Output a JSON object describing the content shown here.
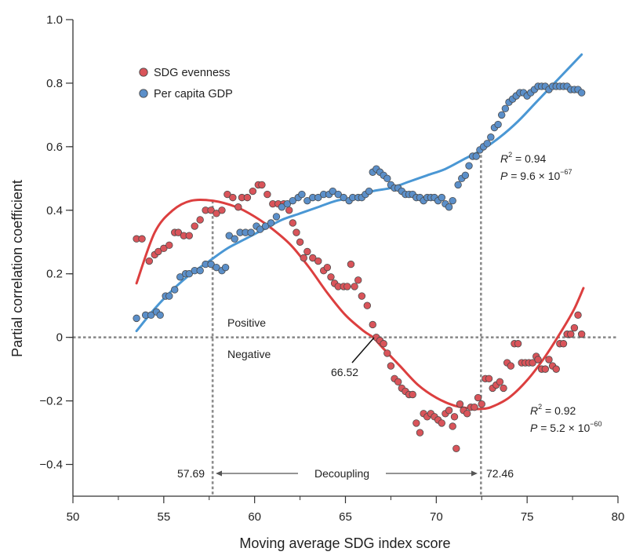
{
  "chart_data": {
    "type": "scatter",
    "xlabel": "Moving average SDG index score",
    "ylabel": "Partial correlation coefficient",
    "xlim": [
      50,
      80
    ],
    "ylim": [
      -0.5,
      1.0
    ],
    "xticks": [
      50,
      55,
      60,
      65,
      70,
      75,
      80
    ],
    "xtick_labels": [
      "50",
      "55",
      "60",
      "65",
      "70",
      "75",
      "80"
    ],
    "yticks": [
      -0.4,
      -0.2,
      0,
      0.2,
      0.4,
      0.6,
      0.8,
      1.0
    ],
    "ytick_labels": [
      "−0.4",
      "−0.2",
      "0",
      "0.2",
      "0.4",
      "0.6",
      "0.8",
      "1.0"
    ],
    "legend": {
      "position": "top-left",
      "entries": [
        "SDG evenness",
        "Per capita GDP"
      ]
    },
    "colors": {
      "evenness_point": "#d9545a",
      "evenness_line": "#dc3f3f",
      "gdp_point": "#5b8fc9",
      "gdp_line": "#4a97d4",
      "reference_line": "#8c8c8c",
      "marker_edge": "#4a4a4a"
    },
    "series": [
      {
        "name": "SDG evenness",
        "points": [
          [
            53.5,
            0.31
          ],
          [
            53.8,
            0.31
          ],
          [
            54.2,
            0.24
          ],
          [
            54.5,
            0.26
          ],
          [
            54.7,
            0.27
          ],
          [
            55.0,
            0.28
          ],
          [
            55.3,
            0.29
          ],
          [
            55.6,
            0.33
          ],
          [
            55.8,
            0.33
          ],
          [
            56.1,
            0.32
          ],
          [
            56.4,
            0.32
          ],
          [
            56.7,
            0.35
          ],
          [
            57.0,
            0.37
          ],
          [
            57.3,
            0.4
          ],
          [
            57.6,
            0.4
          ],
          [
            57.9,
            0.39
          ],
          [
            58.2,
            0.4
          ],
          [
            58.5,
            0.45
          ],
          [
            58.8,
            0.44
          ],
          [
            59.1,
            0.41
          ],
          [
            59.3,
            0.44
          ],
          [
            59.6,
            0.44
          ],
          [
            59.9,
            0.46
          ],
          [
            60.2,
            0.48
          ],
          [
            60.4,
            0.48
          ],
          [
            60.7,
            0.45
          ],
          [
            61.0,
            0.42
          ],
          [
            61.3,
            0.42
          ],
          [
            61.6,
            0.42
          ],
          [
            61.9,
            0.4
          ],
          [
            62.1,
            0.36
          ],
          [
            62.3,
            0.33
          ],
          [
            62.5,
            0.3
          ],
          [
            62.7,
            0.25
          ],
          [
            62.9,
            0.27
          ],
          [
            63.2,
            0.25
          ],
          [
            63.5,
            0.24
          ],
          [
            63.8,
            0.21
          ],
          [
            64.0,
            0.22
          ],
          [
            64.2,
            0.19
          ],
          [
            64.4,
            0.17
          ],
          [
            64.6,
            0.16
          ],
          [
            64.9,
            0.16
          ],
          [
            65.1,
            0.16
          ],
          [
            65.3,
            0.23
          ],
          [
            65.5,
            0.16
          ],
          [
            65.7,
            0.18
          ],
          [
            65.9,
            0.13
          ],
          [
            66.2,
            0.1
          ],
          [
            66.5,
            0.04
          ],
          [
            66.7,
            0.0
          ],
          [
            66.9,
            -0.01
          ],
          [
            67.1,
            -0.02
          ],
          [
            67.3,
            -0.05
          ],
          [
            67.5,
            -0.09
          ],
          [
            67.7,
            -0.13
          ],
          [
            67.9,
            -0.14
          ],
          [
            68.1,
            -0.16
          ],
          [
            68.3,
            -0.17
          ],
          [
            68.5,
            -0.18
          ],
          [
            68.7,
            -0.18
          ],
          [
            68.9,
            -0.27
          ],
          [
            69.1,
            -0.3
          ],
          [
            69.3,
            -0.24
          ],
          [
            69.5,
            -0.25
          ],
          [
            69.7,
            -0.24
          ],
          [
            69.9,
            -0.25
          ],
          [
            70.1,
            -0.26
          ],
          [
            70.3,
            -0.27
          ],
          [
            70.5,
            -0.24
          ],
          [
            70.7,
            -0.23
          ],
          [
            70.9,
            -0.28
          ],
          [
            71.0,
            -0.25
          ],
          [
            71.1,
            -0.35
          ],
          [
            71.3,
            -0.21
          ],
          [
            71.5,
            -0.23
          ],
          [
            71.7,
            -0.24
          ],
          [
            71.9,
            -0.22
          ],
          [
            72.1,
            -0.22
          ],
          [
            72.3,
            -0.19
          ],
          [
            72.5,
            -0.21
          ],
          [
            72.7,
            -0.13
          ],
          [
            72.9,
            -0.13
          ],
          [
            73.1,
            -0.16
          ],
          [
            73.3,
            -0.15
          ],
          [
            73.5,
            -0.14
          ],
          [
            73.7,
            -0.16
          ],
          [
            73.9,
            -0.08
          ],
          [
            74.1,
            -0.09
          ],
          [
            74.3,
            -0.02
          ],
          [
            74.5,
            -0.02
          ],
          [
            74.7,
            -0.08
          ],
          [
            74.9,
            -0.08
          ],
          [
            75.1,
            -0.08
          ],
          [
            75.3,
            -0.08
          ],
          [
            75.5,
            -0.06
          ],
          [
            75.6,
            -0.07
          ],
          [
            75.8,
            -0.1
          ],
          [
            76.0,
            -0.1
          ],
          [
            76.2,
            -0.07
          ],
          [
            76.4,
            -0.09
          ],
          [
            76.6,
            -0.1
          ],
          [
            76.8,
            -0.02
          ],
          [
            77.0,
            -0.02
          ],
          [
            77.2,
            0.01
          ],
          [
            77.4,
            0.01
          ],
          [
            77.6,
            0.03
          ],
          [
            77.8,
            0.07
          ],
          [
            78.0,
            0.01
          ]
        ]
      },
      {
        "name": "Per capita GDP",
        "points": [
          [
            53.5,
            0.06
          ],
          [
            54.0,
            0.07
          ],
          [
            54.3,
            0.07
          ],
          [
            54.6,
            0.08
          ],
          [
            54.8,
            0.07
          ],
          [
            55.1,
            0.13
          ],
          [
            55.3,
            0.13
          ],
          [
            55.6,
            0.15
          ],
          [
            55.9,
            0.19
          ],
          [
            56.2,
            0.2
          ],
          [
            56.4,
            0.2
          ],
          [
            56.7,
            0.21
          ],
          [
            57.0,
            0.21
          ],
          [
            57.3,
            0.23
          ],
          [
            57.6,
            0.23
          ],
          [
            57.9,
            0.22
          ],
          [
            58.2,
            0.21
          ],
          [
            58.4,
            0.22
          ],
          [
            58.6,
            0.32
          ],
          [
            58.9,
            0.31
          ],
          [
            59.2,
            0.33
          ],
          [
            59.5,
            0.33
          ],
          [
            59.8,
            0.33
          ],
          [
            60.1,
            0.35
          ],
          [
            60.3,
            0.34
          ],
          [
            60.6,
            0.35
          ],
          [
            60.9,
            0.36
          ],
          [
            61.2,
            0.38
          ],
          [
            61.5,
            0.41
          ],
          [
            61.8,
            0.42
          ],
          [
            62.1,
            0.43
          ],
          [
            62.4,
            0.44
          ],
          [
            62.6,
            0.45
          ],
          [
            62.9,
            0.43
          ],
          [
            63.2,
            0.44
          ],
          [
            63.5,
            0.44
          ],
          [
            63.8,
            0.45
          ],
          [
            64.1,
            0.45
          ],
          [
            64.3,
            0.46
          ],
          [
            64.6,
            0.45
          ],
          [
            64.9,
            0.44
          ],
          [
            65.2,
            0.43
          ],
          [
            65.4,
            0.44
          ],
          [
            65.7,
            0.44
          ],
          [
            65.9,
            0.44
          ],
          [
            66.1,
            0.45
          ],
          [
            66.3,
            0.46
          ],
          [
            66.5,
            0.52
          ],
          [
            66.7,
            0.53
          ],
          [
            66.9,
            0.52
          ],
          [
            67.1,
            0.51
          ],
          [
            67.3,
            0.5
          ],
          [
            67.5,
            0.48
          ],
          [
            67.7,
            0.47
          ],
          [
            67.9,
            0.47
          ],
          [
            68.1,
            0.46
          ],
          [
            68.3,
            0.45
          ],
          [
            68.5,
            0.45
          ],
          [
            68.7,
            0.45
          ],
          [
            68.9,
            0.44
          ],
          [
            69.1,
            0.44
          ],
          [
            69.3,
            0.43
          ],
          [
            69.5,
            0.44
          ],
          [
            69.7,
            0.44
          ],
          [
            69.9,
            0.44
          ],
          [
            70.1,
            0.43
          ],
          [
            70.3,
            0.44
          ],
          [
            70.5,
            0.42
          ],
          [
            70.7,
            0.41
          ],
          [
            70.9,
            0.43
          ],
          [
            71.2,
            0.48
          ],
          [
            71.4,
            0.5
          ],
          [
            71.6,
            0.51
          ],
          [
            71.8,
            0.54
          ],
          [
            72.0,
            0.57
          ],
          [
            72.2,
            0.57
          ],
          [
            72.4,
            0.59
          ],
          [
            72.6,
            0.6
          ],
          [
            72.8,
            0.61
          ],
          [
            73.0,
            0.63
          ],
          [
            73.2,
            0.66
          ],
          [
            73.4,
            0.67
          ],
          [
            73.6,
            0.7
          ],
          [
            73.8,
            0.72
          ],
          [
            74.0,
            0.74
          ],
          [
            74.2,
            0.75
          ],
          [
            74.4,
            0.76
          ],
          [
            74.6,
            0.77
          ],
          [
            74.8,
            0.77
          ],
          [
            75.0,
            0.76
          ],
          [
            75.2,
            0.77
          ],
          [
            75.4,
            0.78
          ],
          [
            75.6,
            0.79
          ],
          [
            75.8,
            0.79
          ],
          [
            76.0,
            0.79
          ],
          [
            76.2,
            0.78
          ],
          [
            76.4,
            0.79
          ],
          [
            76.6,
            0.79
          ],
          [
            76.8,
            0.79
          ],
          [
            77.0,
            0.79
          ],
          [
            77.2,
            0.79
          ],
          [
            77.4,
            0.78
          ],
          [
            77.6,
            0.78
          ],
          [
            77.8,
            0.78
          ],
          [
            78.0,
            0.77
          ]
        ]
      }
    ],
    "fits": [
      {
        "name": "SDG evenness fit",
        "points": [
          [
            53.5,
            0.17
          ],
          [
            54.5,
            0.33
          ],
          [
            55.5,
            0.4
          ],
          [
            56.5,
            0.43
          ],
          [
            57.69,
            0.43
          ],
          [
            59.0,
            0.41
          ],
          [
            60.0,
            0.38
          ],
          [
            61.0,
            0.34
          ],
          [
            62.0,
            0.29
          ],
          [
            63.0,
            0.22
          ],
          [
            64.0,
            0.14
          ],
          [
            65.0,
            0.07
          ],
          [
            66.0,
            0.02
          ],
          [
            66.52,
            0.0
          ],
          [
            67.0,
            -0.03
          ],
          [
            68.0,
            -0.09
          ],
          [
            69.0,
            -0.15
          ],
          [
            70.0,
            -0.19
          ],
          [
            71.0,
            -0.215
          ],
          [
            72.0,
            -0.225
          ],
          [
            72.46,
            -0.225
          ],
          [
            73.0,
            -0.22
          ],
          [
            74.0,
            -0.19
          ],
          [
            75.0,
            -0.135
          ],
          [
            76.0,
            -0.06
          ],
          [
            77.0,
            0.03
          ],
          [
            77.6,
            0.09
          ],
          [
            78.1,
            0.155
          ]
        ]
      },
      {
        "name": "Per capita GDP fit",
        "points": [
          [
            53.5,
            0.02
          ],
          [
            54.5,
            0.09
          ],
          [
            55.5,
            0.15
          ],
          [
            56.5,
            0.2
          ],
          [
            57.5,
            0.24
          ],
          [
            58.5,
            0.28
          ],
          [
            59.5,
            0.31
          ],
          [
            60.5,
            0.34
          ],
          [
            61.5,
            0.37
          ],
          [
            62.5,
            0.39
          ],
          [
            63.5,
            0.41
          ],
          [
            64.5,
            0.43
          ],
          [
            65.5,
            0.44
          ],
          [
            66.5,
            0.46
          ],
          [
            67.5,
            0.47
          ],
          [
            68.5,
            0.49
          ],
          [
            69.5,
            0.51
          ],
          [
            70.5,
            0.53
          ],
          [
            71.5,
            0.56
          ],
          [
            72.5,
            0.59
          ],
          [
            73.5,
            0.63
          ],
          [
            74.5,
            0.68
          ],
          [
            75.5,
            0.74
          ],
          [
            76.5,
            0.8
          ],
          [
            77.5,
            0.86
          ],
          [
            78.0,
            0.89
          ]
        ]
      }
    ],
    "reference_lines": {
      "horizontal_y": 0,
      "vertical_x": [
        57.69,
        72.46
      ]
    },
    "annotations": {
      "positive": "Positive",
      "negative": "Negative",
      "crossing": "66.52",
      "crossing_x": 66.52,
      "decoupling": "Decoupling",
      "left_bound": "57.69",
      "right_bound": "72.46",
      "gdp_r2_label": "R",
      "gdp_r2_value": " = 0.94",
      "gdp_p_label": "P",
      "gdp_p_value": " = 9.6 × 10",
      "gdp_p_exp": "−67",
      "even_r2_label": "R",
      "even_r2_value": " = 0.92",
      "even_p_label": "P",
      "even_p_value": " = 5.2 × 10",
      "even_p_exp": "−60",
      "sup2": "2"
    }
  }
}
